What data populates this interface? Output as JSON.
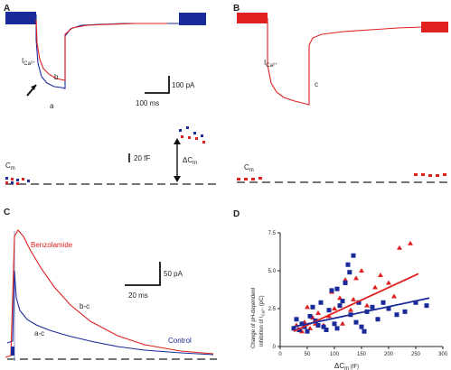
{
  "panels": {
    "A": {
      "label": "A",
      "ica_label": "I",
      "ica_sub": "Ca²⁺",
      "trace_b": "b",
      "trace_a": "a",
      "scale_current": "100 pA",
      "scale_time": "100 ms",
      "cm_label": "C",
      "cm_sub": "m",
      "scale_cap": "20 fF",
      "dcm_label": "ΔC",
      "dcm_sub": "m"
    },
    "B": {
      "label": "B",
      "ica_label": "I",
      "ica_sub": "Ca²⁺",
      "trace_c": "c",
      "cm_label": "C",
      "cm_sub": "m"
    },
    "C": {
      "label": "C",
      "benzolamide": "Benzolamide",
      "b_c": "b-c",
      "a_c": "a-c",
      "control": "Control",
      "scale_current": "50 pA",
      "scale_time": "20 ms"
    },
    "D": {
      "label": "D"
    }
  },
  "colors": {
    "red": "#e02020",
    "blue": "#1a2a9a"
  },
  "chart_data": {
    "type": "scatter",
    "ylabel_line1": "Change of pH-dependent",
    "ylabel_line2": "inhibition of I",
    "ylabel_sub": "Ca²⁺",
    "ylabel_unit": " (pC)",
    "xlabel": "ΔC",
    "xlabel_sub": "m",
    "xlabel_unit": " (fF)",
    "xlim": [
      0,
      300
    ],
    "ylim": [
      0,
      7.5
    ],
    "x_ticks": [
      "0",
      "50",
      "100",
      "150",
      "200",
      "250",
      "300"
    ],
    "y_ticks": [
      "0",
      "2.5",
      "5.0",
      "7.5"
    ],
    "series": [
      {
        "marker": "triangle",
        "color": "#e02020",
        "points": [
          [
            30,
            1.4
          ],
          [
            40,
            1.0
          ],
          [
            45,
            1.6
          ],
          [
            50,
            2.6
          ],
          [
            55,
            1.2
          ],
          [
            60,
            1.9
          ],
          [
            65,
            1.5
          ],
          [
            70,
            2.2
          ],
          [
            80,
            1.4
          ],
          [
            90,
            2.0
          ],
          [
            95,
            3.6
          ],
          [
            100,
            2.5
          ],
          [
            110,
            3.2
          ],
          [
            115,
            1.5
          ],
          [
            120,
            4.4
          ],
          [
            130,
            2.4
          ],
          [
            135,
            3.1
          ],
          [
            140,
            4.5
          ],
          [
            150,
            5.0
          ],
          [
            160,
            2.7
          ],
          [
            175,
            3.9
          ],
          [
            185,
            4.7
          ],
          [
            200,
            4.2
          ],
          [
            220,
            6.5
          ],
          [
            240,
            6.8
          ],
          [
            210,
            3.3
          ]
        ],
        "fit": [
          [
            25,
            1.0
          ],
          [
            255,
            4.8
          ]
        ]
      },
      {
        "marker": "square",
        "color": "#1a2a9a",
        "points": [
          [
            25,
            1.2
          ],
          [
            30,
            1.8
          ],
          [
            35,
            1.1
          ],
          [
            40,
            1.5
          ],
          [
            45,
            1.3
          ],
          [
            50,
            1.0
          ],
          [
            55,
            2.0
          ],
          [
            60,
            2.6
          ],
          [
            65,
            1.7
          ],
          [
            70,
            1.4
          ],
          [
            75,
            2.9
          ],
          [
            80,
            1.3
          ],
          [
            85,
            1.1
          ],
          [
            90,
            2.4
          ],
          [
            95,
            3.7
          ],
          [
            100,
            1.5
          ],
          [
            105,
            1.2
          ],
          [
            110,
            2.7
          ],
          [
            115,
            3.0
          ],
          [
            120,
            4.2
          ],
          [
            125,
            5.4
          ],
          [
            128,
            4.9
          ],
          [
            130,
            2.1
          ],
          [
            135,
            6.0
          ],
          [
            140,
            1.6
          ],
          [
            145,
            2.9
          ],
          [
            150,
            1.3
          ],
          [
            155,
            1.0
          ],
          [
            160,
            2.3
          ],
          [
            170,
            2.6
          ],
          [
            180,
            1.8
          ],
          [
            190,
            2.9
          ],
          [
            200,
            2.5
          ],
          [
            215,
            2.1
          ],
          [
            230,
            2.3
          ],
          [
            250,
            2.9
          ],
          [
            270,
            2.7
          ],
          [
            105,
            3.8
          ]
        ],
        "fit": [
          [
            25,
            1.3
          ],
          [
            275,
            3.2
          ]
        ]
      }
    ]
  }
}
